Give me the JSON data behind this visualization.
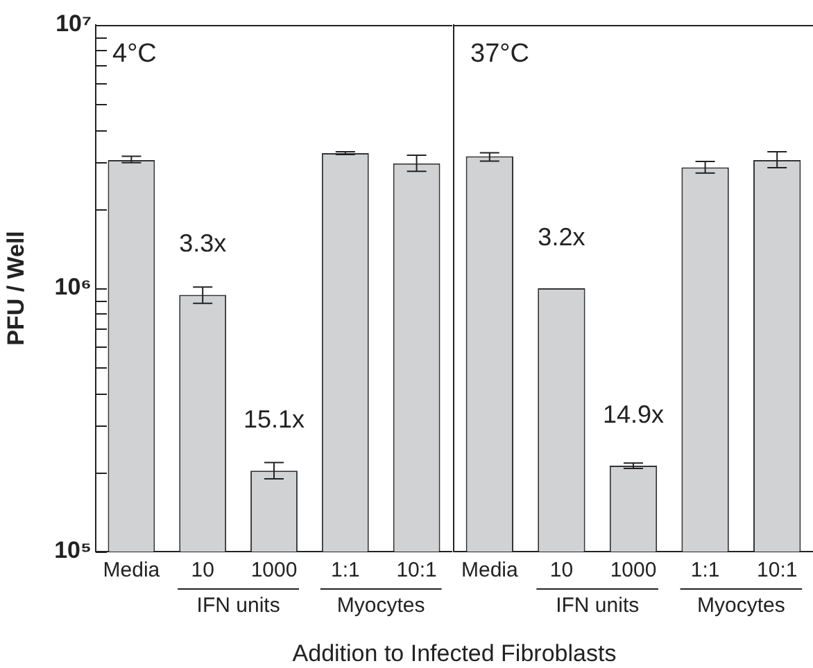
{
  "chart_data": [
    {
      "type": "bar",
      "title": "4°C",
      "ylabel": "PFU / Well",
      "xlabel": "Addition to Infected Fibroblasts",
      "categories": [
        "Media",
        "10",
        "1000",
        "1:1",
        "10:1"
      ],
      "values": [
        3070000,
        944000,
        203000,
        3260000,
        2980000
      ],
      "errors": [
        [
          3000000,
          3170000
        ],
        [
          877000,
          1010000
        ],
        [
          189000,
          218000
        ],
        [
          3220000,
          3300000
        ],
        [
          2780000,
          3200000
        ]
      ],
      "color": "#d1d2d4",
      "log": true,
      "ylim": [
        100000,
        10000000
      ],
      "yticks": [
        {
          "value": 100000,
          "label": "10⁵"
        },
        {
          "value": 200000,
          "label": null
        },
        {
          "value": 300000,
          "label": null
        },
        {
          "value": 400000,
          "label": null
        },
        {
          "value": 500000,
          "label": null
        },
        {
          "value": 600000,
          "label": null
        },
        {
          "value": 700000,
          "label": null
        },
        {
          "value": 800000,
          "label": null
        },
        {
          "value": 900000,
          "label": null
        },
        {
          "value": 1000000,
          "label": "10⁶"
        },
        {
          "value": 2000000,
          "label": null
        },
        {
          "value": 3000000,
          "label": null
        },
        {
          "value": 4000000,
          "label": null
        },
        {
          "value": 5000000,
          "label": null
        },
        {
          "value": 6000000,
          "label": null
        },
        {
          "value": 7000000,
          "label": null
        },
        {
          "value": 8000000,
          "label": null
        },
        {
          "value": 9000000,
          "label": null
        },
        {
          "value": 10000000,
          "label": "10⁷"
        }
      ],
      "annotations": [
        "3.3x",
        "15.1x",
        "IFN units",
        "Myocytes"
      ]
    },
    {
      "type": "bar",
      "title": "37°C",
      "categories": [
        "Media",
        "10",
        "1000",
        "1:1",
        "10:1"
      ],
      "values": [
        3170000,
        1000000,
        212000,
        2880000,
        3070000
      ],
      "errors": [
        [
          3040000,
          3270000
        ],
        null,
        [
          207000,
          217000
        ],
        [
          2740000,
          3030000
        ],
        [
          2870000,
          3300000
        ]
      ],
      "color": "#d1d2d4",
      "log": true,
      "ylim": [
        100000,
        10000000
      ],
      "tick_labels": "x",
      "annotations": [
        "3.2x",
        "14.9x",
        "IFN units",
        "Myocytes"
      ]
    }
  ]
}
